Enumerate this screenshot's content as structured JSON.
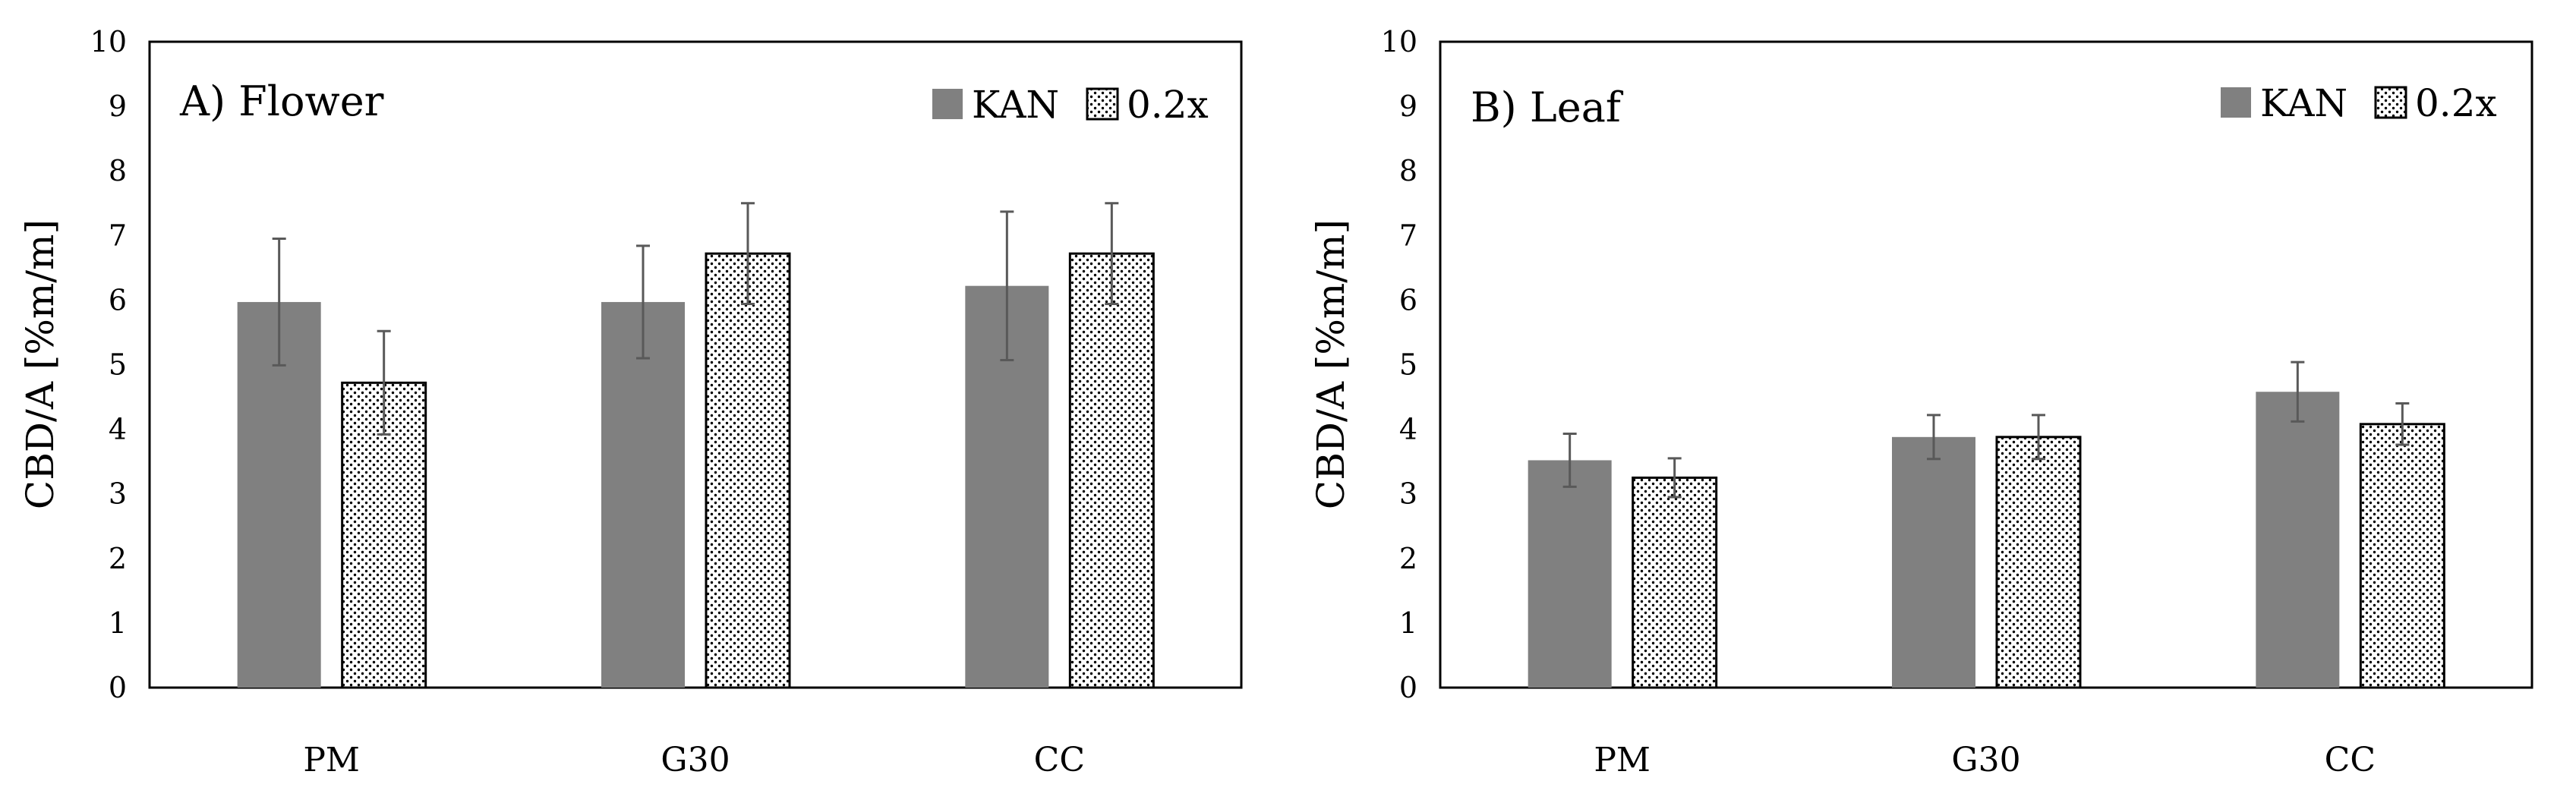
{
  "chart_data": [
    {
      "type": "bar",
      "title": "A) Flower",
      "xlabel": "",
      "ylabel": "CBD/A [%m/m]",
      "ylim": [
        0,
        10
      ],
      "yticks": [
        "0",
        "1",
        "2",
        "3",
        "4",
        "5",
        "6",
        "7",
        "8",
        "9",
        "10"
      ],
      "categories": [
        "PM",
        "G30",
        "CC"
      ],
      "legend_position": "top-right",
      "series": [
        {
          "name": "KAN",
          "values": [
            5.97,
            5.97,
            6.22
          ],
          "errors": [
            0.98,
            0.87,
            1.15
          ]
        },
        {
          "name": "0.2x",
          "values": [
            4.72,
            6.72,
            6.72
          ],
          "errors": [
            0.8,
            0.78,
            0.78
          ]
        }
      ]
    },
    {
      "type": "bar",
      "title": "B) Leaf",
      "xlabel": "",
      "ylabel": "CBD/A [%m/m]",
      "ylim": [
        0,
        10
      ],
      "yticks": [
        "0",
        "1",
        "2",
        "3",
        "4",
        "5",
        "6",
        "7",
        "8",
        "9",
        "10"
      ],
      "categories": [
        "PM",
        "G30",
        "CC"
      ],
      "legend_position": "top-right",
      "series": [
        {
          "name": "KAN",
          "values": [
            3.52,
            3.88,
            4.58
          ],
          "errors": [
            0.41,
            0.34,
            0.46
          ]
        },
        {
          "name": "0.2x",
          "values": [
            3.25,
            3.88,
            4.08
          ],
          "errors": [
            0.3,
            0.34,
            0.32
          ]
        }
      ]
    }
  ],
  "colors": {
    "kan_fill": "#808080",
    "dot_fill": "#ffffff",
    "dot_color": "#000000",
    "error_bar": "#595959",
    "axis": "#000000"
  }
}
